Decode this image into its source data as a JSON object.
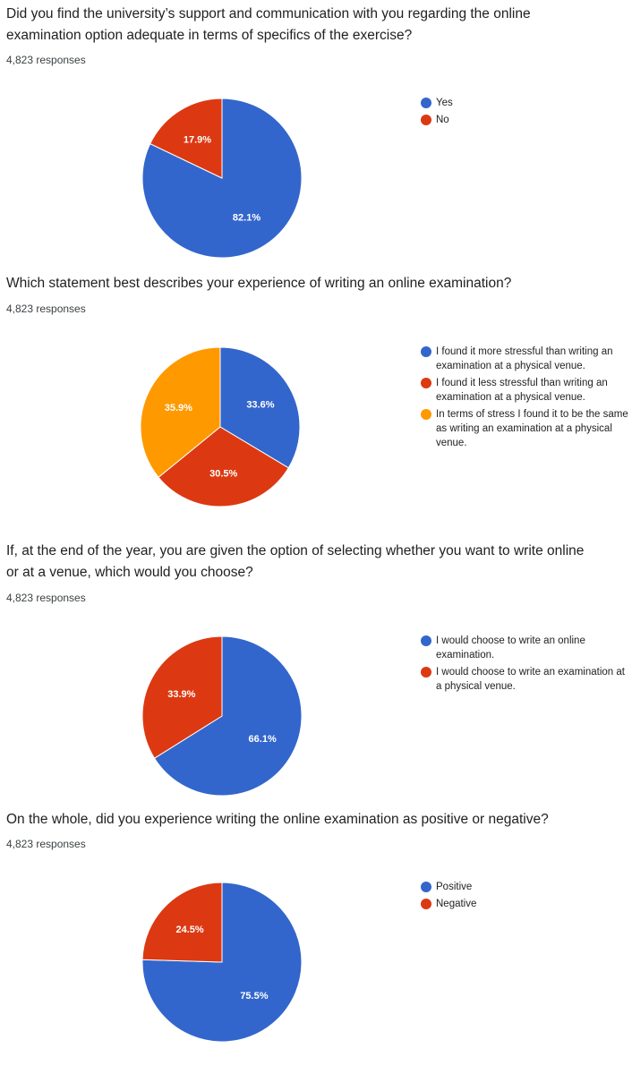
{
  "response_label_suffix": "responses",
  "chart_data": [
    {
      "type": "pie",
      "title": "Did you find the university’s support and communication with you regarding the online examination option adequate in terms of specifics of the exercise?",
      "responses": "4,823 responses",
      "labels": [
        "Yes",
        "No"
      ],
      "values": [
        82.1,
        17.9
      ],
      "value_labels": [
        "82.1%",
        "17.9%"
      ],
      "colors": [
        "#3366cc",
        "#dc3912"
      ],
      "legend_position": "right"
    },
    {
      "type": "pie",
      "title": "Which statement best describes your experience of writing an online examination?",
      "responses": "4,823 responses",
      "labels": [
        "I found it more stressful than writing an examination at a physical venue.",
        "I found it less stressful than writing an examination at a physical venue.",
        "In terms of stress I found it to be the same as writing an examination at a physical venue."
      ],
      "values": [
        33.6,
        30.5,
        35.9
      ],
      "value_labels": [
        "33.6%",
        "30.5%",
        "35.9%"
      ],
      "colors": [
        "#3366cc",
        "#dc3912",
        "#ff9900"
      ],
      "legend_position": "right"
    },
    {
      "type": "pie",
      "title": "If, at the end of the year, you are given the option of selecting whether you want to write online or at a venue, which would you choose?",
      "responses": "4,823 responses",
      "labels": [
        "I would choose to write an online examination.",
        "I would choose to write an examination at a physical venue."
      ],
      "values": [
        66.1,
        33.9
      ],
      "value_labels": [
        "66.1%",
        "33.9%"
      ],
      "colors": [
        "#3366cc",
        "#dc3912"
      ],
      "legend_position": "right"
    },
    {
      "type": "pie",
      "title": "On the whole, did you experience writing the online examination as positive or negative?",
      "responses": "4,823 responses",
      "labels": [
        "Positive",
        "Negative"
      ],
      "values": [
        75.5,
        24.5
      ],
      "value_labels": [
        "75.5%",
        "24.5%"
      ],
      "colors": [
        "#3366cc",
        "#dc3912"
      ],
      "legend_position": "right"
    }
  ]
}
